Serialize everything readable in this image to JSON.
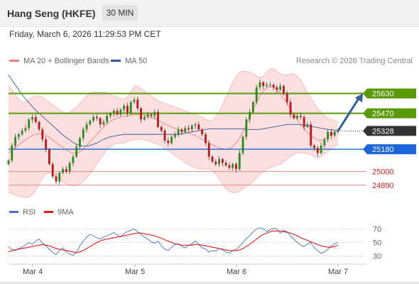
{
  "header": {
    "instrument": "Hang Seng (HKFE)",
    "timeframe": "30 MIN",
    "datetime": "Friday, March 6, 2026 11:29:53 PM CET"
  },
  "legend": {
    "bollinger_label": "MA 20 + Bollinger Bands",
    "bollinger_color": "#f08080",
    "ma50_label": "MA 50",
    "ma50_color": "#2f5f9a",
    "credit": "Research © 2026 Trading Central"
  },
  "rsi_legend": {
    "rsi_label": "RSI",
    "rsi_color": "#4472c4",
    "ma_label": "9MA",
    "ma_color": "#e31a1c"
  },
  "chart_data": [
    {
      "type": "candlestick",
      "title": "",
      "x_ticks": [
        "Mar 4",
        "Mar 5",
        "Mar 6",
        "Mar 7"
      ],
      "ylim": [
        24780,
        25840
      ],
      "last_price": 25328,
      "level_lines": [
        {
          "label": "25630",
          "value": 25630,
          "kind": "resistance",
          "color": "#5a9a08",
          "tag": true
        },
        {
          "label": "25470",
          "value": 25470,
          "kind": "resistance",
          "color": "#5a9a08",
          "tag": true
        },
        {
          "label": "25328",
          "value": 25328,
          "kind": "last",
          "color": "#333333",
          "tag": true
        },
        {
          "label": "25180",
          "value": 25180,
          "kind": "pivot",
          "color": "#1a66d9",
          "tag": true
        },
        {
          "label": "25000",
          "value": 25000,
          "kind": "support",
          "color": "#e8888a",
          "tag": false
        },
        {
          "label": "24890",
          "value": 24890,
          "kind": "support",
          "color": "#e8888a",
          "tag": false
        }
      ],
      "close_series": [
        25090,
        25210,
        25280,
        25300,
        25330,
        25350,
        25420,
        25440,
        25400,
        25340,
        25260,
        25180,
        25060,
        24960,
        24920,
        24990,
        25020,
        25000,
        25070,
        25120,
        25200,
        25270,
        25340,
        25380,
        25410,
        25440,
        25430,
        25380,
        25400,
        25450,
        25470,
        25490,
        25460,
        25500,
        25530,
        25470,
        25560,
        25580,
        25510,
        25420,
        25440,
        25460,
        25450,
        25480,
        25360,
        25330,
        25250,
        25230,
        25280,
        25300,
        25340,
        25320,
        25350,
        25340,
        25370,
        25380,
        25340,
        25300,
        25230,
        25120,
        25080,
        25060,
        25100,
        25070,
        25050,
        25030,
        25060,
        25020,
        25150,
        25280,
        25420,
        25480,
        25560,
        25680,
        25720,
        25690,
        25700,
        25700,
        25680,
        25660,
        25690,
        25630,
        25560,
        25460,
        25430,
        25450,
        25440,
        25360,
        25380,
        25210,
        25190,
        25150,
        25210,
        25260,
        25320,
        25290,
        25320,
        25328
      ],
      "ma20": [
        25150,
        25170,
        25195,
        25215,
        25235,
        25255,
        25275,
        25290,
        25300,
        25305,
        25305,
        25295,
        25275,
        25255,
        25235,
        25215,
        25195,
        25175,
        25160,
        25150,
        25150,
        25160,
        25180,
        25210,
        25240,
        25270,
        25300,
        25330,
        25360,
        25385,
        25405,
        25420,
        25430,
        25440,
        25445,
        25450,
        25455,
        25460,
        25462,
        25460,
        25455,
        25448,
        25440,
        25430,
        25415,
        25400,
        25385,
        25370,
        25360,
        25350,
        25340,
        25330,
        25320,
        25310,
        25300,
        25290,
        25275,
        25260,
        25245,
        25230,
        25215,
        25200,
        25190,
        25185,
        25180,
        25185,
        25200,
        25230,
        25270,
        25320,
        25380,
        25440,
        25500,
        25560,
        25610,
        25650,
        25675,
        25685,
        25680,
        25660,
        25630,
        25590,
        25550,
        25505,
        25460,
        25420,
        25380,
        25345,
        25315,
        25290,
        25270,
        25255,
        25250,
        25260,
        25280,
        25300,
        25315,
        25325
      ],
      "bb_upper": [
        25700,
        25660,
        25620,
        25580,
        25560,
        25560,
        25580,
        25600,
        25610,
        25610,
        25600,
        25580,
        25560,
        25540,
        25520,
        25500,
        25480,
        25470,
        25480,
        25500,
        25520,
        25550,
        25580,
        25610,
        25630,
        25640,
        25640,
        25640,
        25640,
        25635,
        25620,
        25610,
        25600,
        25590,
        25585,
        25600,
        25640,
        25690,
        25690,
        25670,
        25650,
        25630,
        25610,
        25590,
        25570,
        25560,
        25550,
        25540,
        25530,
        25520,
        25510,
        25500,
        25490,
        25480,
        25470,
        25460,
        25450,
        25440,
        25420,
        25410,
        25410,
        25440,
        25480,
        25540,
        25600,
        25660,
        25720,
        25770,
        25800,
        25810,
        25810,
        25800,
        25790,
        25770,
        25760,
        25770,
        25800,
        25830,
        25830,
        25810,
        25790,
        25780,
        25780,
        25790,
        25790,
        25770,
        25740,
        25690,
        25640,
        25590,
        25550,
        25510,
        25480,
        25450,
        25430,
        25420,
        25410,
        25400
      ],
      "bb_lower": [
        24830,
        24820,
        24810,
        24800,
        24795,
        24790,
        24795,
        24810,
        24850,
        24900,
        24950,
        24980,
        24990,
        24980,
        24960,
        24930,
        24910,
        24900,
        24890,
        24885,
        24890,
        24900,
        24920,
        24950,
        24980,
        25020,
        25060,
        25100,
        25140,
        25180,
        25200,
        25220,
        25230,
        25230,
        25230,
        25240,
        25250,
        25260,
        25260,
        25260,
        25255,
        25250,
        25240,
        25230,
        25220,
        25205,
        25190,
        25170,
        25150,
        25130,
        25110,
        25090,
        25070,
        25060,
        25040,
        25030,
        25020,
        25020,
        25020,
        25020,
        25010,
        24980,
        24940,
        24900,
        24860,
        24840,
        24830,
        24830,
        24840,
        24860,
        24880,
        24900,
        24920,
        24950,
        24980,
        25000,
        25020,
        25030,
        25040,
        25050,
        25060,
        25080,
        25100,
        25120,
        25140,
        25150,
        25150,
        25150,
        25145,
        25135,
        25120,
        25110,
        25120,
        25140,
        25160,
        25180,
        25200,
        25220
      ],
      "ma50": [
        25780,
        25740,
        25700,
        25660,
        25620,
        25585,
        25555,
        25525,
        25495,
        25470,
        25445,
        25420,
        25395,
        25370,
        25345,
        25320,
        25295,
        25275,
        25255,
        25235,
        25220,
        25210,
        25205,
        25205,
        25210,
        25220,
        25230,
        25245,
        25260,
        25270,
        25280,
        25285,
        25290,
        25295,
        25300,
        25300,
        25300,
        25300,
        25300,
        25300,
        25300,
        25300,
        25300,
        25300,
        25300,
        25300,
        25300,
        25300,
        25300,
        25300,
        25300,
        25305,
        25310,
        25315,
        25320,
        25325,
        25330,
        25335,
        25340,
        25345,
        25345,
        25345,
        25345,
        25345,
        25345,
        25345,
        25345,
        25345,
        25345,
        25345,
        25340,
        25340,
        25340,
        25340,
        25340,
        25345,
        25350,
        25355,
        25360,
        25365,
        25370,
        25375,
        25380,
        25380,
        25380,
        25380,
        25378,
        25375,
        25370,
        25365,
        25360,
        25355,
        25350,
        25345,
        25340,
        25338,
        25335,
        25332
      ],
      "projection": {
        "from": 25328,
        "to": 25630
      }
    },
    {
      "type": "line",
      "title": "RSI",
      "ylim": [
        20,
        80
      ],
      "y_ticks": [
        70,
        50,
        30
      ],
      "series": [
        {
          "name": "RSI",
          "values": [
            44,
            40,
            38,
            41,
            43,
            46,
            50,
            47,
            52,
            55,
            49,
            45,
            40,
            35,
            32,
            38,
            42,
            36,
            33,
            31,
            35,
            45,
            52,
            58,
            62,
            60,
            57,
            55,
            58,
            60,
            62,
            65,
            61,
            58,
            63,
            66,
            68,
            70,
            66,
            62,
            58,
            55,
            51,
            49,
            52,
            45,
            40,
            38,
            43,
            47,
            48,
            44,
            42,
            46,
            48,
            52,
            47,
            42,
            40,
            36,
            38,
            37,
            41,
            39,
            36,
            34,
            38,
            40,
            44,
            50,
            56,
            60,
            66,
            70,
            72,
            70,
            66,
            69,
            71,
            70,
            64,
            68,
            66,
            60,
            55,
            50,
            46,
            44,
            48,
            50,
            42,
            38,
            34,
            36,
            40,
            45,
            48,
            50
          ]
        },
        {
          "name": "9MA",
          "values": [
            36,
            38,
            39,
            40,
            41,
            42,
            43,
            44,
            45,
            46,
            47,
            46,
            45,
            43,
            41,
            40,
            39,
            38,
            37,
            36,
            35,
            36,
            38,
            41,
            44,
            47,
            50,
            52,
            54,
            55,
            56,
            57,
            58,
            59,
            60,
            61,
            62,
            63,
            64,
            64,
            63,
            62,
            61,
            60,
            58,
            56,
            54,
            52,
            50,
            48,
            47,
            46,
            46,
            46,
            46,
            47,
            47,
            46,
            45,
            44,
            43,
            42,
            41,
            40,
            39,
            38,
            38,
            38,
            39,
            41,
            44,
            47,
            51,
            55,
            59,
            62,
            64,
            66,
            67,
            67,
            67,
            66,
            65,
            64,
            62,
            60,
            57,
            55,
            53,
            51,
            49,
            47,
            45,
            44,
            43,
            43,
            44,
            46
          ]
        }
      ]
    }
  ]
}
